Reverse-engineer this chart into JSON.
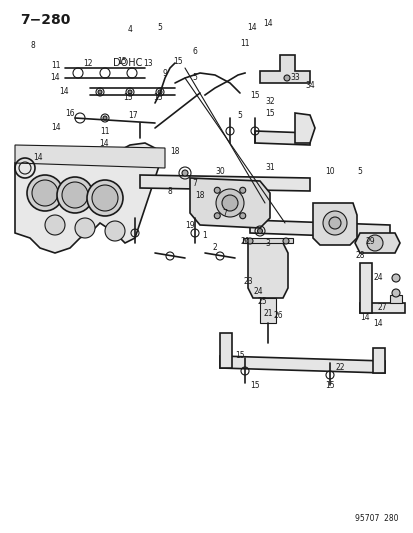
{
  "title": "7-280",
  "subtitle": "DOHC",
  "footer": "95707  280",
  "bg_color": "#ffffff",
  "line_color": "#1a1a1a",
  "label_color": "#1a1a1a",
  "fig_width": 4.14,
  "fig_height": 5.33,
  "dpi": 100
}
